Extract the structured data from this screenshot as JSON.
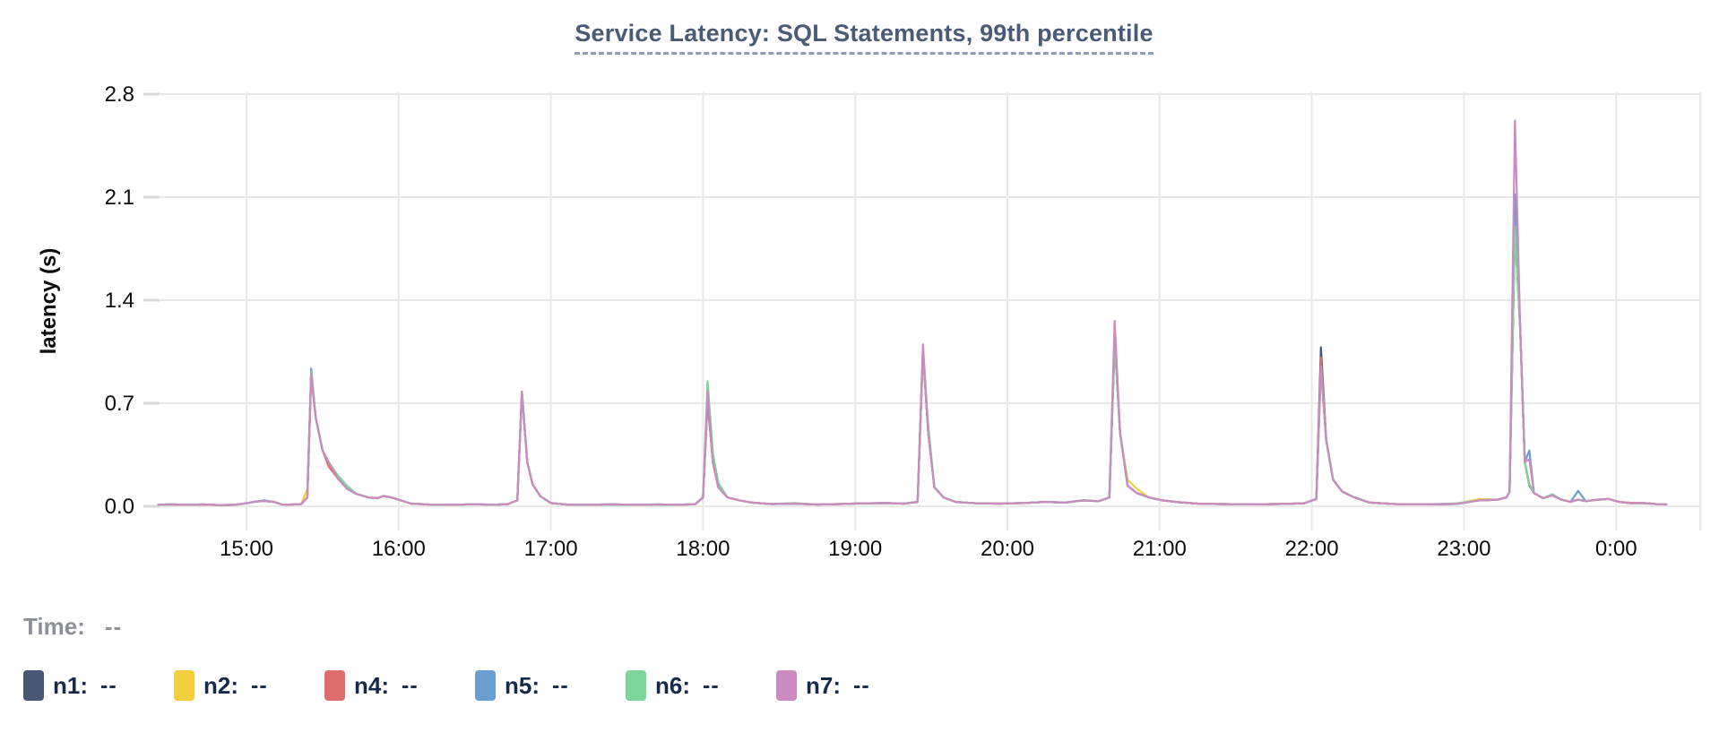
{
  "title": {
    "text": "Service Latency: SQL Statements, 99th percentile",
    "color": "#4a5b77"
  },
  "time_readout": {
    "label": "Time:",
    "value": "--"
  },
  "colors": {
    "grid": "#e9e9e9",
    "tick_stub": "#d8d8d8",
    "axis_text": "#0d0d0d",
    "title_text": "#4a5b77",
    "legend_text": "#16294d"
  },
  "chart_data": {
    "type": "line",
    "title": "Service Latency: SQL Statements, 99th percentile",
    "xlabel": "",
    "ylabel": "latency (s)",
    "legend_position": "bottom-left",
    "grid": true,
    "x_axis": {
      "tick_hours": [
        15,
        16,
        17,
        18,
        19,
        20,
        21,
        22,
        23,
        24
      ],
      "tick_labels": [
        "15:00",
        "16:00",
        "17:00",
        "18:00",
        "19:00",
        "20:00",
        "21:00",
        "22:00",
        "23:00",
        "0:00"
      ]
    },
    "y_axis": {
      "ticks": [
        0,
        0.7,
        1.4,
        2.1,
        2.8
      ],
      "tick_labels": [
        "0.0",
        "0.7",
        "1.4",
        "2.1",
        "2.8"
      ]
    },
    "xlim_hours": [
      14.42,
      24.33
    ],
    "ylim": [
      0,
      2.95
    ],
    "x_hours": [
      14.42,
      14.5,
      14.6,
      14.72,
      14.82,
      14.92,
      15.0,
      15.06,
      15.12,
      15.18,
      15.24,
      15.3,
      15.36,
      15.4,
      15.425,
      15.455,
      15.5,
      15.54,
      15.6,
      15.66,
      15.72,
      15.8,
      15.86,
      15.9,
      15.95,
      16.0,
      16.08,
      16.2,
      16.35,
      16.5,
      16.62,
      16.72,
      16.78,
      16.81,
      16.845,
      16.88,
      16.93,
      17.0,
      17.1,
      17.25,
      17.4,
      17.55,
      17.7,
      17.85,
      17.95,
      18.0,
      18.03,
      18.065,
      18.1,
      18.16,
      18.24,
      18.32,
      18.45,
      18.6,
      18.75,
      18.9,
      19.05,
      19.2,
      19.32,
      19.41,
      19.445,
      19.48,
      19.52,
      19.58,
      19.66,
      19.8,
      19.95,
      20.1,
      20.25,
      20.38,
      20.5,
      20.6,
      20.67,
      20.705,
      20.74,
      20.79,
      20.85,
      20.93,
      21.02,
      21.12,
      21.25,
      21.4,
      21.6,
      21.8,
      21.95,
      22.03,
      22.06,
      22.095,
      22.14,
      22.2,
      22.28,
      22.38,
      22.55,
      22.75,
      22.95,
      23.1,
      23.22,
      23.28,
      23.3,
      23.335,
      23.37,
      23.4,
      23.43,
      23.46,
      23.52,
      23.58,
      23.64,
      23.7,
      23.75,
      23.8,
      23.88,
      23.95,
      24.02,
      24.1,
      24.18,
      24.26,
      24.33
    ],
    "y_base": [
      0.01,
      0.013,
      0.01,
      0.012,
      0.008,
      0.01,
      0.02,
      0.032,
      0.036,
      0.03,
      0.01,
      0.012,
      0.015,
      0.06,
      0.9,
      0.6,
      0.38,
      0.3,
      0.19,
      0.12,
      0.085,
      0.06,
      0.055,
      0.07,
      0.06,
      0.045,
      0.018,
      0.012,
      0.01,
      0.014,
      0.01,
      0.015,
      0.04,
      0.78,
      0.3,
      0.15,
      0.07,
      0.022,
      0.012,
      0.01,
      0.013,
      0.01,
      0.012,
      0.01,
      0.015,
      0.06,
      0.73,
      0.3,
      0.13,
      0.06,
      0.04,
      0.025,
      0.015,
      0.018,
      0.012,
      0.015,
      0.02,
      0.022,
      0.018,
      0.03,
      1.1,
      0.5,
      0.13,
      0.06,
      0.03,
      0.02,
      0.018,
      0.022,
      0.03,
      0.025,
      0.04,
      0.035,
      0.06,
      1.15,
      0.5,
      0.14,
      0.09,
      0.06,
      0.04,
      0.028,
      0.018,
      0.015,
      0.013,
      0.016,
      0.02,
      0.05,
      0.95,
      0.45,
      0.18,
      0.1,
      0.06,
      0.025,
      0.015,
      0.013,
      0.016,
      0.04,
      0.045,
      0.06,
      0.1,
      1.88,
      1.2,
      0.3,
      0.15,
      0.09,
      0.055,
      0.075,
      0.045,
      0.03,
      0.045,
      0.035,
      0.045,
      0.05,
      0.03,
      0.02,
      0.022,
      0.015,
      0.012
    ],
    "series": [
      {
        "name": "n1",
        "color": "#475872",
        "legend_label": "n1:",
        "legend_value": "--",
        "peaks_note": "peaks: 15:25=0.89, 18:02=0.72, 19:27=1.05, 20:42=1.12, 22:04=1.08, 23:20=1.88",
        "y_overrides": {
          "14": 0.89,
          "33": 0.765,
          "46": 0.72,
          "60": 1.05,
          "73": 1.12,
          "86": 1.08,
          "99": 1.88,
          "102": 0.14
        }
      },
      {
        "name": "n2",
        "color": "#f3cf3e",
        "legend_label": "n2:",
        "legend_value": "--",
        "peaks_note": "peaks: 15:25=0.88, 19:27=1.04, 20:42=1.13, 22:04=0.93, 23:20=1.95",
        "y_overrides": {
          "13": 0.12,
          "14": 0.88,
          "33": 0.77,
          "46": 0.72,
          "60": 1.04,
          "73": 1.13,
          "75": 0.18,
          "76": 0.12,
          "86": 0.93,
          "95": 0.05,
          "99": 1.95
        }
      },
      {
        "name": "n4",
        "color": "#dd6e6b",
        "legend_label": "n4:",
        "legend_value": "--",
        "peaks_note": "peaks: 15:25=0.90, 19:27=1.05, 20:42=1.13, 22:04=1.01, 23:20=1.92",
        "y_overrides": {
          "14": 0.9,
          "17": 0.27,
          "33": 0.77,
          "46": 0.71,
          "60": 1.05,
          "73": 1.13,
          "86": 1.01,
          "99": 1.92,
          "113": 0.024
        }
      },
      {
        "name": "n5",
        "color": "#699ecf",
        "legend_label": "n5:",
        "legend_value": "--",
        "peaks_note": "peaks: 15:25=0.935, 18:02=0.75, 19:27=1.07, 20:42=1.14, 23:20=2.12, blip 23:26=0.38",
        "y_overrides": {
          "8": 0.04,
          "14": 0.935,
          "33": 0.775,
          "46": 0.75,
          "60": 1.07,
          "73": 1.14,
          "86": 0.94,
          "99": 2.12,
          "102": 0.38,
          "108": 0.105
        }
      },
      {
        "name": "n6",
        "color": "#7cd69b",
        "legend_label": "n6:",
        "legend_value": "--",
        "peaks_note": "peaks: 15:25=0.91, 18:02=0.85, 19:27=1.06, 20:42=1.12, 23:20=1.90",
        "y_overrides": {
          "14": 0.91,
          "18": 0.21,
          "19": 0.14,
          "46": 0.85,
          "47": 0.36,
          "48": 0.16,
          "53": 0.022,
          "60": 1.06,
          "61": 0.55,
          "73": 1.12,
          "86": 0.93,
          "94": 0.02,
          "99": 1.9,
          "102": 0.15,
          "105": 0.082
        }
      },
      {
        "name": "n7",
        "color": "#cb8ac1",
        "legend_label": "n7:",
        "legend_value": "--",
        "peaks_note": "peaks: 15:25=0.90, 16:49=0.78, 18:02=0.78, 19:27=1.10, 20:42=1.26, 22:04=0.95, 23:20=2.62",
        "y_overrides": {
          "46": 0.78,
          "73": 1.26,
          "99": 2.62,
          "102": 0.32
        }
      }
    ]
  }
}
